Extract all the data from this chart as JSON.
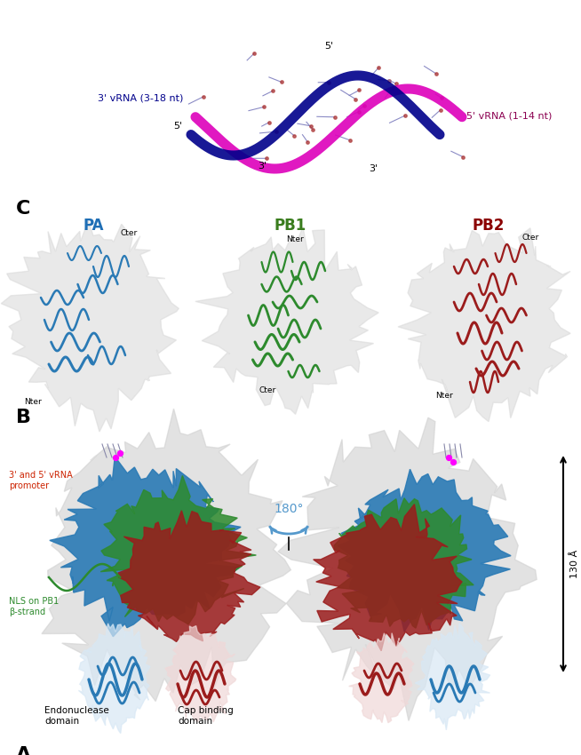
{
  "panel_A_label": "A",
  "panel_B_label": "B",
  "panel_C_label": "C",
  "title": "",
  "background_color": "#ffffff",
  "panel_A_annotations": {
    "endonuclease_domain": "Endonuclease\ndomain",
    "cap_binding_domain": "Cap binding\ndomain",
    "NLS_label": "NLS on PB1\nβ-strand",
    "vRNA_label": "3' and 5' vRNA\npromoter",
    "rotation_label": "180°",
    "scale_label": "130 Å"
  },
  "panel_B_labels": {
    "PA": "PA",
    "PB1": "PB1",
    "PB2": "PB2",
    "PA_color": "#1f6eb5",
    "PB1_color": "#3a7d1e",
    "PB2_color": "#8b0000"
  },
  "panel_C_annotations": {
    "label_3prime_top_left": "3'",
    "label_3prime_top_right": "3'",
    "label_5prime_left": "5'",
    "label_5prime_bottom": "5'",
    "label_3vRNA": "3' vRNA (3-18 nt)",
    "label_5vRNA": "5' vRNA (1-14 nt)",
    "color_3vRNA": "#00008b",
    "color_5vRNA": "#8b0050"
  },
  "colors": {
    "PA_blue": "#2a7ab5",
    "PB1_green": "#2d8a2d",
    "PB2_red": "#9b1c1c",
    "gray_surface": "#c8c8c8",
    "magenta": "#cc00cc",
    "dark_blue_ribbon": "#00008b",
    "magenta_ribbon": "#dd00aa",
    "arrow_color": "#000000",
    "rotation_arrow_color": "#5599cc"
  },
  "figsize": [
    6.54,
    8.5
  ],
  "dpi": 100
}
